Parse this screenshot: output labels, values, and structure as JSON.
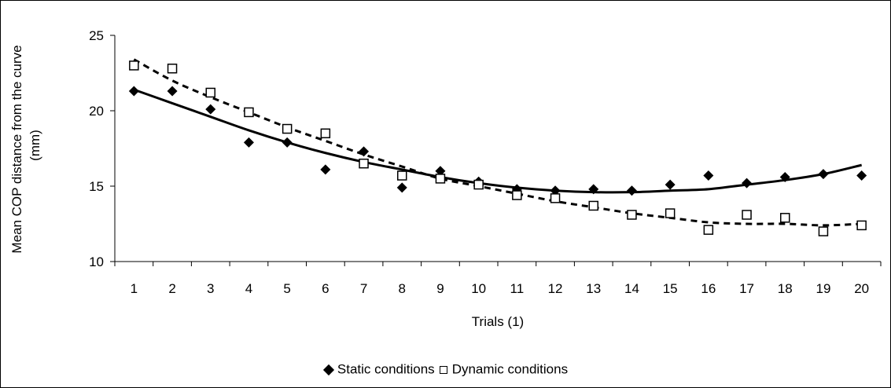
{
  "chart_data": {
    "type": "scatter",
    "ylabel_line1": "Mean COP distance from the curve",
    "ylabel_line2": "(mm)",
    "xlabel": "Trials (1)",
    "title": "",
    "x": [
      1,
      2,
      3,
      4,
      5,
      6,
      7,
      8,
      9,
      10,
      11,
      12,
      13,
      14,
      15,
      16,
      17,
      18,
      19,
      20
    ],
    "yticks": [
      "10",
      "15",
      "20",
      "25"
    ],
    "ylim": [
      10,
      25
    ],
    "grid": false,
    "legend_position": "bottom",
    "series": [
      {
        "name": "Static conditions",
        "marker": "diamond",
        "values": [
          21.3,
          21.3,
          20.1,
          17.9,
          17.9,
          16.1,
          17.3,
          14.9,
          16.0,
          15.3,
          14.8,
          14.7,
          14.8,
          14.7,
          15.1,
          15.7,
          15.2,
          15.6,
          15.8,
          15.7
        ],
        "trend": [
          21.4,
          20.5,
          19.6,
          18.7,
          17.9,
          17.2,
          16.6,
          16.1,
          15.6,
          15.2,
          14.9,
          14.7,
          14.6,
          14.6,
          14.7,
          14.8,
          15.1,
          15.4,
          15.8,
          16.4
        ],
        "trend_style": "solid"
      },
      {
        "name": "Dynamic conditions",
        "marker": "square",
        "values": [
          23.0,
          22.8,
          21.2,
          19.9,
          18.8,
          18.5,
          16.5,
          15.7,
          15.5,
          15.1,
          14.4,
          14.2,
          13.7,
          13.1,
          13.2,
          12.1,
          13.1,
          12.9,
          12.0,
          12.4
        ],
        "trend": [
          23.4,
          22.0,
          20.9,
          19.9,
          18.9,
          18.0,
          17.1,
          16.3,
          15.5,
          15.0,
          14.5,
          14.0,
          13.6,
          13.2,
          12.9,
          12.6,
          12.5,
          12.5,
          12.4,
          12.5
        ],
        "trend_style": "dashed"
      }
    ],
    "colors": {
      "axis": "#000000",
      "marker": "#000000"
    }
  },
  "legend": {
    "static_label": "Static conditions",
    "dynamic_label": "Dynamic conditions"
  }
}
